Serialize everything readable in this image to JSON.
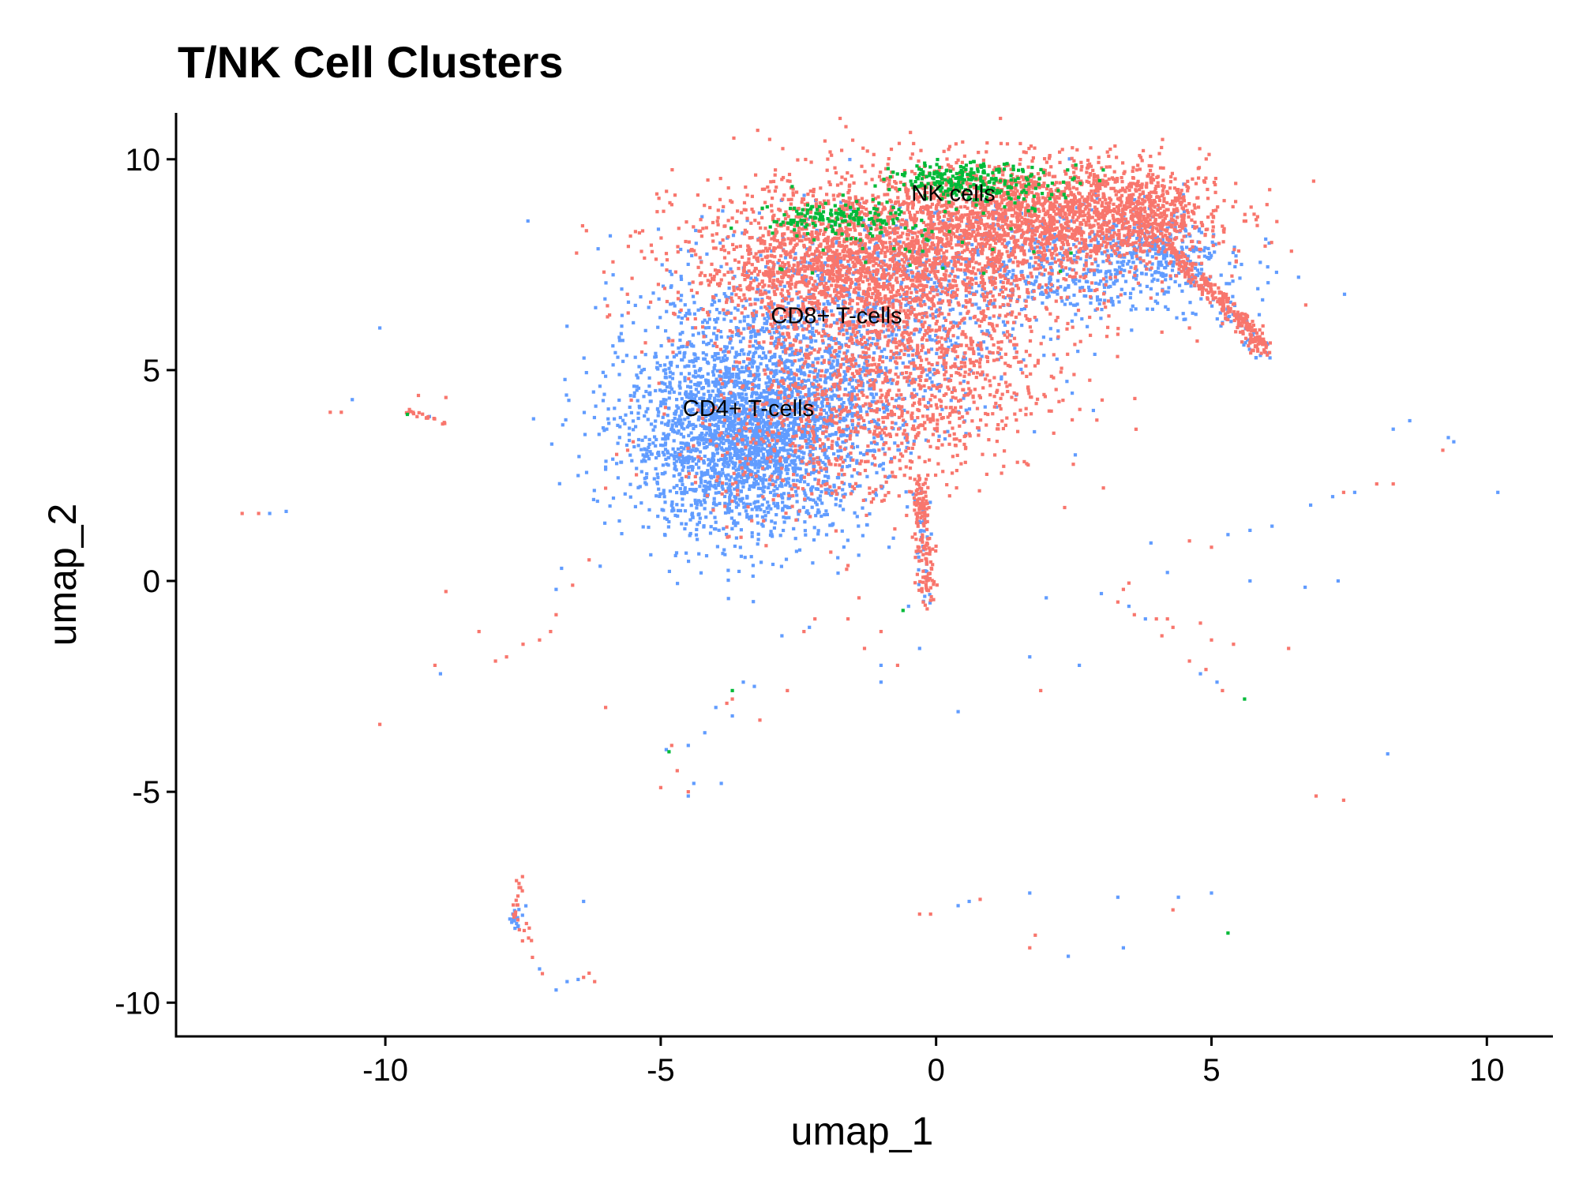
{
  "chart_data": {
    "type": "scatter",
    "title": "T/NK Cell Clusters",
    "xlabel": "umap_1",
    "ylabel": "umap_2",
    "xlim": [
      -13.8,
      11.2
    ],
    "ylim": [
      -10.8,
      11.1
    ],
    "x_ticks": [
      -10,
      -5,
      0,
      5,
      10
    ],
    "y_ticks": [
      -10,
      -5,
      0,
      5,
      10
    ],
    "x_tick_labels": [
      "-10",
      "-5",
      "0",
      "5",
      "10"
    ],
    "y_tick_labels": [
      "-10",
      "-5",
      "0",
      "5",
      "10"
    ],
    "grid": false,
    "legend": "none",
    "point_size_data_units": 0.06,
    "series": [
      {
        "name": "CD4+ T-cells",
        "color": "#619CFF"
      },
      {
        "name": "CD8+ T-cells",
        "color": "#F8766D"
      },
      {
        "name": "NK cells",
        "color": "#00BA38"
      }
    ],
    "cluster_labels": [
      {
        "text": "CD4+ T-cells",
        "x": -4.6,
        "y": 4.1
      },
      {
        "text": "CD8+ T-cells",
        "x": -3.0,
        "y": 6.3
      },
      {
        "text": "NK cells",
        "x": -0.45,
        "y": 9.2
      }
    ],
    "dense_regions": [
      {
        "series": 0,
        "count": 2600,
        "cx": -3.4,
        "cy": 3.4,
        "sx": 1.1,
        "sy": 1.15
      },
      {
        "series": 0,
        "count": 1100,
        "cx": -2.0,
        "cy": 5.8,
        "sx": 1.6,
        "sy": 1.3
      },
      {
        "series": 0,
        "count": 650,
        "cx": 1.8,
        "cy": 7.5,
        "sx": 1.7,
        "sy": 0.7
      },
      {
        "series": 0,
        "count": 220,
        "cx": 4.0,
        "cy": 7.8,
        "sx": 0.6,
        "sy": 0.5
      },
      {
        "series": 1,
        "count": 2300,
        "cx": -1.0,
        "cy": 7.5,
        "sx": 1.8,
        "sy": 1.05
      },
      {
        "series": 1,
        "count": 1700,
        "cx": 1.9,
        "cy": 8.7,
        "sx": 1.5,
        "sy": 0.65
      },
      {
        "series": 1,
        "count": 850,
        "cx": -0.5,
        "cy": 4.8,
        "sx": 1.25,
        "sy": 1.2
      },
      {
        "series": 1,
        "count": 380,
        "cx": -2.3,
        "cy": 3.4,
        "sx": 1.1,
        "sy": 1.0
      },
      {
        "series": 1,
        "count": 300,
        "cx": 3.9,
        "cy": 8.6,
        "sx": 0.5,
        "sy": 0.45
      },
      {
        "series": 1,
        "count": 260,
        "cx": -2.2,
        "cy": 7.4,
        "sx": 0.9,
        "sy": 0.6
      },
      {
        "series": 2,
        "count": 140,
        "cx": -1.8,
        "cy": 8.6,
        "sx": 0.6,
        "sy": 0.2
      },
      {
        "series": 2,
        "count": 160,
        "cx": 0.3,
        "cy": 9.5,
        "sx": 0.55,
        "sy": 0.2
      },
      {
        "series": 2,
        "count": 110,
        "cx": 1.3,
        "cy": 9.4,
        "sx": 0.7,
        "sy": 0.25
      },
      {
        "series": 2,
        "count": 45,
        "cx": -0.7,
        "cy": 8.3,
        "sx": 1.4,
        "sy": 0.6
      }
    ],
    "curve_regions": [
      {
        "series": 1,
        "count": 260,
        "spread": 0.1,
        "path": [
          [
            4.3,
            7.8
          ],
          [
            4.8,
            7.1
          ],
          [
            5.2,
            6.6
          ],
          [
            5.6,
            6.1
          ],
          [
            5.9,
            5.5
          ]
        ]
      },
      {
        "series": 0,
        "count": 40,
        "spread": 0.12,
        "path": [
          [
            4.6,
            7.3
          ],
          [
            5.3,
            6.3
          ],
          [
            5.8,
            5.7
          ],
          [
            5.9,
            5.4
          ]
        ]
      },
      {
        "series": 1,
        "count": 150,
        "spread": 0.08,
        "path": [
          [
            -0.3,
            2.5
          ],
          [
            -0.25,
            1.5
          ],
          [
            -0.2,
            0.5
          ],
          [
            -0.15,
            -0.5
          ]
        ]
      },
      {
        "series": 0,
        "count": 40,
        "spread": 0.08,
        "path": [
          [
            -0.3,
            2.3
          ],
          [
            -0.2,
            0.8
          ],
          [
            -0.15,
            -0.6
          ]
        ]
      },
      {
        "series": 1,
        "count": 25,
        "spread": 0.08,
        "path": [
          [
            -7.5,
            -6.9
          ],
          [
            -7.6,
            -7.6
          ],
          [
            -7.5,
            -8.4
          ],
          [
            -7.2,
            -9.3
          ]
        ]
      },
      {
        "series": 0,
        "count": 15,
        "spread": 0.06,
        "path": [
          [
            -7.6,
            -7.7
          ],
          [
            -7.6,
            -8.2
          ]
        ]
      },
      {
        "series": 1,
        "count": 18,
        "spread": 0.06,
        "path": [
          [
            -9.6,
            4.0
          ],
          [
            -9.3,
            3.9
          ],
          [
            -9.0,
            3.8
          ]
        ]
      }
    ],
    "scattered_points": [
      {
        "series": 1,
        "x": -12.6,
        "y": 1.6
      },
      {
        "series": 1,
        "x": -12.3,
        "y": 1.6
      },
      {
        "series": 0,
        "x": -12.1,
        "y": 1.6
      },
      {
        "series": 0,
        "x": -11.8,
        "y": 1.65
      },
      {
        "series": 1,
        "x": -11.0,
        "y": 4.0
      },
      {
        "series": 1,
        "x": -10.8,
        "y": 4.0
      },
      {
        "series": 0,
        "x": -10.6,
        "y": 4.3
      },
      {
        "series": 0,
        "x": -10.1,
        "y": 6.0
      },
      {
        "series": 1,
        "x": -9.4,
        "y": 4.4
      },
      {
        "series": 1,
        "x": -8.9,
        "y": 4.35
      },
      {
        "series": 2,
        "x": -9.6,
        "y": 3.95
      },
      {
        "series": 0,
        "x": -9.2,
        "y": 3.9
      },
      {
        "series": 1,
        "x": -8.9,
        "y": -0.25
      },
      {
        "series": 1,
        "x": -8.3,
        "y": -1.2
      },
      {
        "series": 1,
        "x": -8.0,
        "y": -1.9
      },
      {
        "series": 1,
        "x": -7.8,
        "y": -1.8
      },
      {
        "series": 1,
        "x": -7.5,
        "y": -1.5
      },
      {
        "series": 1,
        "x": -7.2,
        "y": -1.4
      },
      {
        "series": 1,
        "x": -7.0,
        "y": -1.2
      },
      {
        "series": 1,
        "x": -6.9,
        "y": -0.8
      },
      {
        "series": 0,
        "x": -6.8,
        "y": 0.3
      },
      {
        "series": 0,
        "x": -6.9,
        "y": -0.2
      },
      {
        "series": 1,
        "x": -6.6,
        "y": -0.1
      },
      {
        "series": 0,
        "x": -6.5,
        "y": 2.5
      },
      {
        "series": 1,
        "x": -6.3,
        "y": 0.5
      },
      {
        "series": 0,
        "x": -6.1,
        "y": 0.35
      },
      {
        "series": 1,
        "x": -6.0,
        "y": 2.2
      },
      {
        "series": 0,
        "x": -6.0,
        "y": 2.7
      },
      {
        "series": 1,
        "x": -5.8,
        "y": 3.0
      },
      {
        "series": 1,
        "x": -5.5,
        "y": 3.3
      },
      {
        "series": 1,
        "x": -5.6,
        "y": 3.1
      },
      {
        "series": 0,
        "x": -5.4,
        "y": 3.35
      },
      {
        "series": 1,
        "x": -9.1,
        "y": -2.0
      },
      {
        "series": 0,
        "x": -9.0,
        "y": -2.2
      },
      {
        "series": 1,
        "x": -10.1,
        "y": -3.4
      },
      {
        "series": 1,
        "x": -6.0,
        "y": -3.0
      },
      {
        "series": 1,
        "x": -5.0,
        "y": -4.9
      },
      {
        "series": 0,
        "x": -4.9,
        "y": -4.0
      },
      {
        "series": 2,
        "x": -4.85,
        "y": -4.05
      },
      {
        "series": 1,
        "x": -4.8,
        "y": -3.9
      },
      {
        "series": 0,
        "x": -4.5,
        "y": -3.9
      },
      {
        "series": 1,
        "x": -4.7,
        "y": -4.5
      },
      {
        "series": 1,
        "x": -4.5,
        "y": -5.0
      },
      {
        "series": 0,
        "x": -4.5,
        "y": -5.1
      },
      {
        "series": 0,
        "x": -4.4,
        "y": -4.8
      },
      {
        "series": 0,
        "x": -4.2,
        "y": -3.6
      },
      {
        "series": 0,
        "x": -4.0,
        "y": -3.0
      },
      {
        "series": 1,
        "x": -3.8,
        "y": -2.9
      },
      {
        "series": 0,
        "x": -3.9,
        "y": -4.8
      },
      {
        "series": 0,
        "x": -3.7,
        "y": -3.2
      },
      {
        "series": 2,
        "x": -3.7,
        "y": -2.6
      },
      {
        "series": 1,
        "x": -3.7,
        "y": -2.8
      },
      {
        "series": 0,
        "x": -3.5,
        "y": -2.4
      },
      {
        "series": 1,
        "x": -3.2,
        "y": -3.3
      },
      {
        "series": 0,
        "x": -3.3,
        "y": -2.5
      },
      {
        "series": 1,
        "x": -2.7,
        "y": -2.6
      },
      {
        "series": 0,
        "x": -2.8,
        "y": -1.3
      },
      {
        "series": 1,
        "x": -2.4,
        "y": -1.2
      },
      {
        "series": 0,
        "x": -2.3,
        "y": -1.1
      },
      {
        "series": 1,
        "x": -2.2,
        "y": -0.9
      },
      {
        "series": 1,
        "x": -1.6,
        "y": -0.9
      },
      {
        "series": 1,
        "x": -1.3,
        "y": -1.6
      },
      {
        "series": 0,
        "x": -1.0,
        "y": -2.0
      },
      {
        "series": 1,
        "x": -1.0,
        "y": -1.2
      },
      {
        "series": 1,
        "x": -1.4,
        "y": -0.4
      },
      {
        "series": 2,
        "x": -0.6,
        "y": -0.7
      },
      {
        "series": 0,
        "x": -0.5,
        "y": -0.6
      },
      {
        "series": 1,
        "x": -0.7,
        "y": -2.0
      },
      {
        "series": 0,
        "x": -1.0,
        "y": -2.4
      },
      {
        "series": 0,
        "x": -0.3,
        "y": -1.6
      },
      {
        "series": 0,
        "x": 0.4,
        "y": -3.1
      },
      {
        "series": 0,
        "x": 1.7,
        "y": -1.8
      },
      {
        "series": 1,
        "x": 1.9,
        "y": -2.6
      },
      {
        "series": 0,
        "x": 2.6,
        "y": -2.0
      },
      {
        "series": 0,
        "x": 2.0,
        "y": -0.4
      },
      {
        "series": 0,
        "x": 3.0,
        "y": -0.3
      },
      {
        "series": 1,
        "x": 3.3,
        "y": -0.5
      },
      {
        "series": 0,
        "x": 3.5,
        "y": -0.6
      },
      {
        "series": 1,
        "x": 3.6,
        "y": -0.8
      },
      {
        "series": 0,
        "x": 3.8,
        "y": -0.9
      },
      {
        "series": 1,
        "x": 4.0,
        "y": -0.9
      },
      {
        "series": 1,
        "x": 4.2,
        "y": -0.9
      },
      {
        "series": 1,
        "x": 3.4,
        "y": -0.2
      },
      {
        "series": 1,
        "x": 4.3,
        "y": -1.1
      },
      {
        "series": 1,
        "x": 4.1,
        "y": -1.3
      },
      {
        "series": 1,
        "x": 3.5,
        "y": -0.05
      },
      {
        "series": 0,
        "x": 3.9,
        "y": 0.9
      },
      {
        "series": 1,
        "x": 4.6,
        "y": 0.95
      },
      {
        "series": 1,
        "x": 5.0,
        "y": 0.8
      },
      {
        "series": 0,
        "x": 5.3,
        "y": 1.1
      },
      {
        "series": 0,
        "x": 5.7,
        "y": 1.2
      },
      {
        "series": 0,
        "x": 6.1,
        "y": 1.3
      },
      {
        "series": 0,
        "x": 6.8,
        "y": 1.8
      },
      {
        "series": 0,
        "x": 7.2,
        "y": 2.0
      },
      {
        "series": 1,
        "x": 7.4,
        "y": 2.1
      },
      {
        "series": 0,
        "x": 7.6,
        "y": 2.1
      },
      {
        "series": 1,
        "x": 8.0,
        "y": 2.3
      },
      {
        "series": 1,
        "x": 8.3,
        "y": 2.3
      },
      {
        "series": 0,
        "x": 8.3,
        "y": 3.6
      },
      {
        "series": 0,
        "x": 8.6,
        "y": 3.8
      },
      {
        "series": 0,
        "x": 9.3,
        "y": 3.4
      },
      {
        "series": 1,
        "x": 9.2,
        "y": 3.1
      },
      {
        "series": 0,
        "x": 9.4,
        "y": 3.3
      },
      {
        "series": 0,
        "x": 10.2,
        "y": 2.1
      },
      {
        "series": 0,
        "x": 4.2,
        "y": 0.2
      },
      {
        "series": 0,
        "x": 5.7,
        "y": 0.0
      },
      {
        "series": 0,
        "x": 6.7,
        "y": -0.15
      },
      {
        "series": 0,
        "x": 7.3,
        "y": 0.0
      },
      {
        "series": 1,
        "x": 4.8,
        "y": -1.0
      },
      {
        "series": 1,
        "x": 5.0,
        "y": -1.4
      },
      {
        "series": 1,
        "x": 4.6,
        "y": -1.9
      },
      {
        "series": 1,
        "x": 4.9,
        "y": -2.1
      },
      {
        "series": 0,
        "x": 5.1,
        "y": -2.4
      },
      {
        "series": 1,
        "x": 5.2,
        "y": -2.6
      },
      {
        "series": 0,
        "x": 4.8,
        "y": -2.2
      },
      {
        "series": 1,
        "x": 5.4,
        "y": -1.5
      },
      {
        "series": 2,
        "x": 5.6,
        "y": -2.8
      },
      {
        "series": 1,
        "x": 6.4,
        "y": -1.6
      },
      {
        "series": 0,
        "x": 8.2,
        "y": -4.1
      },
      {
        "series": 1,
        "x": 6.9,
        "y": -5.1
      },
      {
        "series": 1,
        "x": 7.4,
        "y": -5.2
      },
      {
        "series": 1,
        "x": -6.4,
        "y": -9.4
      },
      {
        "series": 0,
        "x": -6.7,
        "y": -9.5
      },
      {
        "series": 1,
        "x": -6.3,
        "y": -9.3
      },
      {
        "series": 0,
        "x": -6.9,
        "y": -9.7
      },
      {
        "series": 0,
        "x": -7.2,
        "y": -9.2
      },
      {
        "series": 0,
        "x": -6.4,
        "y": -7.6
      },
      {
        "series": 1,
        "x": -6.2,
        "y": -9.5
      },
      {
        "series": 0,
        "x": -6.5,
        "y": -9.45
      },
      {
        "series": 1,
        "x": -0.3,
        "y": -7.9
      },
      {
        "series": 1,
        "x": -0.1,
        "y": -7.9
      },
      {
        "series": 0,
        "x": 0.4,
        "y": -7.7
      },
      {
        "series": 0,
        "x": 0.6,
        "y": -7.6
      },
      {
        "series": 1,
        "x": 0.8,
        "y": -7.55
      },
      {
        "series": 0,
        "x": 1.7,
        "y": -7.4
      },
      {
        "series": 1,
        "x": 1.8,
        "y": -8.4
      },
      {
        "series": 1,
        "x": 1.7,
        "y": -8.7
      },
      {
        "series": 0,
        "x": 2.4,
        "y": -8.9
      },
      {
        "series": 0,
        "x": 3.3,
        "y": -7.5
      },
      {
        "series": 0,
        "x": 3.4,
        "y": -8.7
      },
      {
        "series": 0,
        "x": 4.4,
        "y": -7.5
      },
      {
        "series": 1,
        "x": 4.3,
        "y": -7.8
      },
      {
        "series": 0,
        "x": 5.0,
        "y": -7.4
      },
      {
        "series": 2,
        "x": 5.3,
        "y": -8.35
      },
      {
        "series": 1,
        "x": 3.1,
        "y": 5.8
      },
      {
        "series": 1,
        "x": 3.3,
        "y": 5.85
      },
      {
        "series": 1,
        "x": 4.1,
        "y": 5.9
      },
      {
        "series": 0,
        "x": 4.5,
        "y": 6.2
      },
      {
        "series": 1,
        "x": 4.6,
        "y": 6.0
      },
      {
        "series": 1,
        "x": 5.2,
        "y": 6.1
      }
    ]
  }
}
